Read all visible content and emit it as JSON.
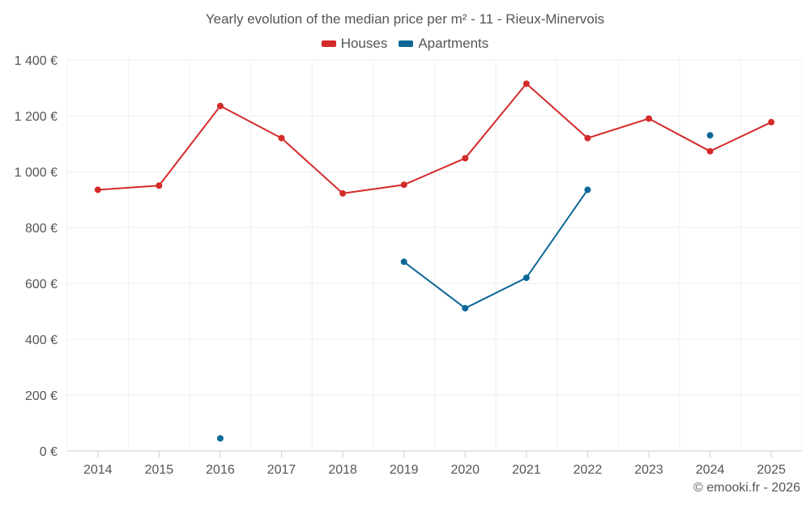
{
  "chart_data": {
    "type": "line",
    "title": "Yearly evolution of the median price per m² - 11 - Rieux-Minervois",
    "categories": [
      "2014",
      "2015",
      "2016",
      "2017",
      "2018",
      "2019",
      "2020",
      "2021",
      "2022",
      "2023",
      "2024",
      "2025"
    ],
    "ylim": [
      0,
      1400
    ],
    "yticks": [
      0,
      200,
      400,
      600,
      800,
      1000,
      1200,
      1400
    ],
    "ytick_labels": [
      "0 €",
      "200 €",
      "400 €",
      "600 €",
      "800 €",
      "1 000 €",
      "1 200 €",
      "1 400 €"
    ],
    "xlabel": "",
    "ylabel": "",
    "grid": true,
    "legend_position": "top-center",
    "series": [
      {
        "name": "Houses",
        "color": "#d42a2a",
        "values": [
          935,
          950,
          1235,
          1120,
          922,
          953,
          1048,
          1315,
          1120,
          1190,
          1073,
          1177
        ]
      },
      {
        "name": "Apartments",
        "color": "#0d6797",
        "values": [
          null,
          null,
          45,
          null,
          null,
          677,
          511,
          620,
          935,
          null,
          1130,
          null
        ]
      }
    ]
  },
  "credit": "© emooki.fr - 2026"
}
